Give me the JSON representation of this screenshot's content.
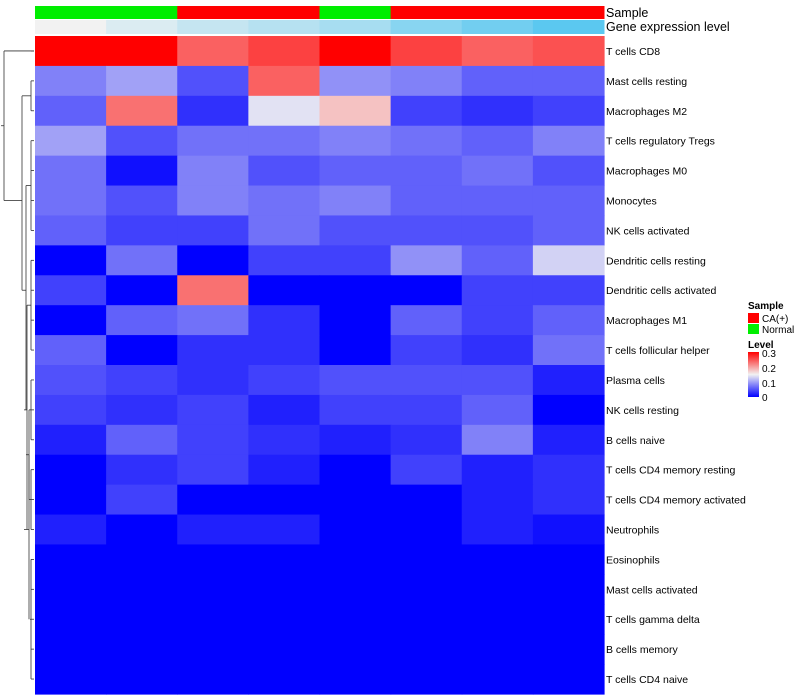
{
  "chart_data": {
    "type": "heatmap",
    "annotation_labels": {
      "sample": "Sample",
      "gene": "Gene expression level"
    },
    "columns": 8,
    "sample_annotation": [
      "Normal",
      "Normal",
      "CA(+)",
      "CA(+)",
      "Normal",
      "CA(+)",
      "CA(+)",
      "CA(+)"
    ],
    "gene_expression_annotation": [
      0.0,
      0.15,
      0.3,
      0.4,
      0.5,
      0.7,
      0.85,
      1.0
    ],
    "rows": [
      "T cells CD8",
      "Mast cells resting",
      "Macrophages M2",
      "T cells regulatory  Tregs",
      "Macrophages M0",
      "Monocytes",
      "NK cells activated",
      "Dendritic cells resting",
      "Dendritic cells activated",
      "Macrophages M1",
      "T cells follicular helper",
      "Plasma cells",
      "NK cells resting",
      "B cells naive",
      "T cells CD4 memory resting",
      "T cells CD4 memory activated",
      "Neutrophils",
      "Eosinophils",
      "Mast cells activated",
      "T cells gamma delta",
      "B cells memory",
      "T cells CD4 naive"
    ],
    "values": [
      [
        0.3,
        0.3,
        0.24,
        0.26,
        0.3,
        0.26,
        0.24,
        0.25
      ],
      [
        0.08,
        0.1,
        0.05,
        0.24,
        0.09,
        0.08,
        0.06,
        0.06
      ],
      [
        0.06,
        0.23,
        0.03,
        0.14,
        0.18,
        0.04,
        0.03,
        0.04
      ],
      [
        0.1,
        0.05,
        0.07,
        0.07,
        0.08,
        0.07,
        0.06,
        0.08
      ],
      [
        0.07,
        0.01,
        0.08,
        0.05,
        0.06,
        0.06,
        0.07,
        0.05
      ],
      [
        0.07,
        0.05,
        0.08,
        0.07,
        0.08,
        0.06,
        0.06,
        0.06
      ],
      [
        0.06,
        0.04,
        0.04,
        0.07,
        0.05,
        0.05,
        0.05,
        0.06
      ],
      [
        0.0,
        0.07,
        0.0,
        0.04,
        0.04,
        0.09,
        0.06,
        0.13
      ],
      [
        0.04,
        0.0,
        0.23,
        0.0,
        0.0,
        0.0,
        0.04,
        0.04
      ],
      [
        0.0,
        0.06,
        0.07,
        0.03,
        0.0,
        0.06,
        0.04,
        0.06
      ],
      [
        0.06,
        0.0,
        0.03,
        0.03,
        0.0,
        0.04,
        0.03,
        0.07
      ],
      [
        0.05,
        0.04,
        0.03,
        0.04,
        0.05,
        0.05,
        0.05,
        0.02
      ],
      [
        0.04,
        0.03,
        0.04,
        0.02,
        0.04,
        0.04,
        0.06,
        0.0
      ],
      [
        0.02,
        0.06,
        0.04,
        0.03,
        0.02,
        0.03,
        0.08,
        0.02
      ],
      [
        0.0,
        0.03,
        0.04,
        0.02,
        0.0,
        0.04,
        0.02,
        0.03
      ],
      [
        0.0,
        0.04,
        0.0,
        0.0,
        0.0,
        0.0,
        0.02,
        0.03
      ],
      [
        0.02,
        0.0,
        0.02,
        0.02,
        0.0,
        0.0,
        0.02,
        0.01
      ],
      [
        0.0,
        0.0,
        0.0,
        0.0,
        0.0,
        0.0,
        0.0,
        0.0
      ],
      [
        0.0,
        0.0,
        0.0,
        0.0,
        0.0,
        0.0,
        0.0,
        0.0
      ],
      [
        0.0,
        0.0,
        0.0,
        0.0,
        0.0,
        0.0,
        0.0,
        0.0
      ],
      [
        0.0,
        0.0,
        0.0,
        0.0,
        0.0,
        0.0,
        0.0,
        0.0
      ],
      [
        0.0,
        0.0,
        0.0,
        0.0,
        0.0,
        0.0,
        0.0,
        0.0
      ]
    ],
    "color_scale": {
      "min": 0,
      "mid": 0.15,
      "max": 0.3,
      "low_color": "#0000ff",
      "mid_color": "#f2f2f2",
      "high_color": "#ff0000"
    },
    "gene_expression_colors": {
      "low": "#f2f2f2",
      "high": "#5bc8f0"
    },
    "legend": {
      "sample_title": "Sample",
      "sample_entries": [
        {
          "label": "CA(+)",
          "color": "#ff0000"
        },
        {
          "label": "Normal",
          "color": "#00ee00"
        }
      ],
      "level_title": "Level",
      "level_ticks": [
        "0.3",
        "0.2",
        "0.1",
        "0"
      ]
    },
    "dendrogram": "row-clustering"
  }
}
